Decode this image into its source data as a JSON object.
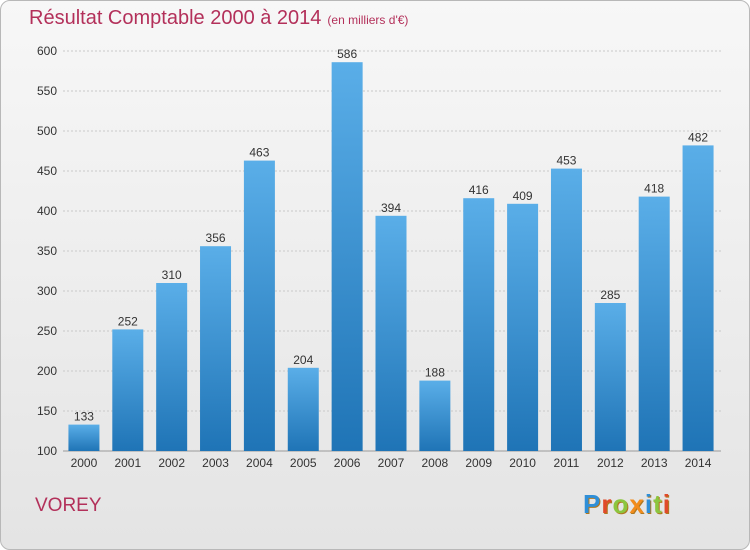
{
  "header": {
    "title": "Résultat Comptable 2000 à 2014",
    "subtitle": "(en milliers d'€)"
  },
  "footer": {
    "commune": "VOREY",
    "brand": "Proxiti",
    "brand_letters": [
      {
        "ch": "P",
        "color": "#2f8fd8"
      },
      {
        "ch": "r",
        "color": "#e04a2a"
      },
      {
        "ch": "o",
        "color": "#8cc63f"
      },
      {
        "ch": "x",
        "color": "#f28c1c"
      },
      {
        "ch": "i",
        "color": "#2f8fd8"
      },
      {
        "ch": "t",
        "color": "#8cc63f"
      },
      {
        "ch": "i",
        "color": "#e04a2a"
      }
    ]
  },
  "colors": {
    "title": "#b3305a",
    "bar_light": "#5aaee8",
    "bar_dark": "#1f74b6",
    "grid": "#c9c9c9",
    "axis_text": "#333333"
  },
  "chart_data": {
    "type": "bar",
    "title": "Résultat Comptable 2000 à 2014",
    "ylabel": "",
    "xlabel": "",
    "ylim": [
      100,
      600
    ],
    "yticks": [
      100,
      150,
      200,
      250,
      300,
      350,
      400,
      450,
      500,
      550,
      600
    ],
    "grid": true,
    "categories": [
      "2000",
      "2001",
      "2002",
      "2003",
      "2004",
      "2005",
      "2006",
      "2007",
      "2008",
      "2009",
      "2010",
      "2011",
      "2012",
      "2013",
      "2014"
    ],
    "values": [
      133,
      252,
      310,
      356,
      463,
      204,
      586,
      394,
      188,
      416,
      409,
      453,
      285,
      418,
      482
    ]
  }
}
